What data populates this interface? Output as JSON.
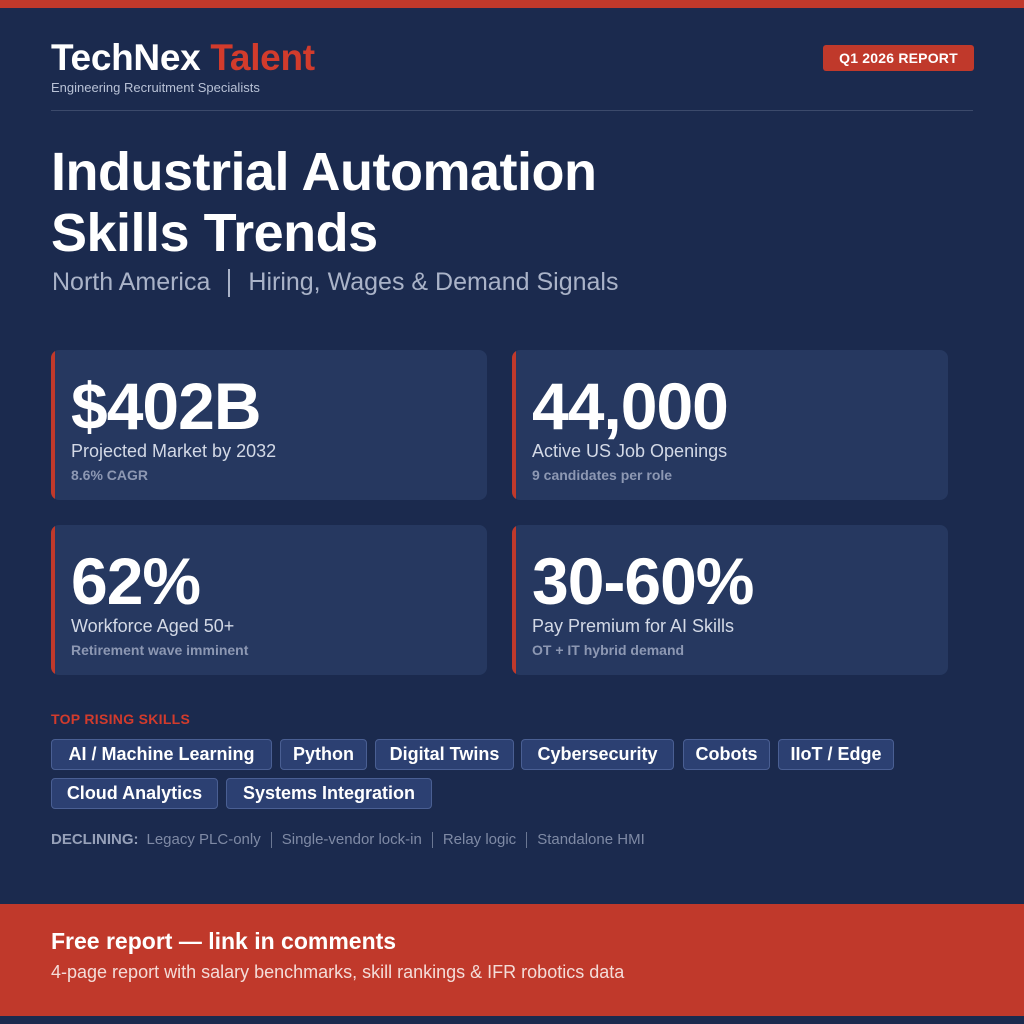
{
  "brand": {
    "name_main": "TechNex",
    "name_accent": "Talent",
    "tagline": "Engineering Recruitment Specialists"
  },
  "report_badge": "Q1 2026 REPORT",
  "title": {
    "line1": "Industrial Automation",
    "line2": "Skills Trends"
  },
  "subtitle": {
    "region": "North America",
    "topic": "Hiring, Wages & Demand Signals"
  },
  "stats": [
    {
      "value": "$402B",
      "label": "Projected Market by 2032",
      "note": "8.6% CAGR"
    },
    {
      "value": "44,000",
      "label": "Active US Job Openings",
      "note": "9 candidates per role"
    },
    {
      "value": "62%",
      "label": "Workforce Aged 50+",
      "note": "Retirement wave imminent"
    },
    {
      "value": "30-60%",
      "label": "Pay Premium for AI Skills",
      "note": "OT + IT hybrid demand"
    }
  ],
  "rising": {
    "heading": "TOP RISING SKILLS",
    "skills": [
      "AI / Machine Learning",
      "Python",
      "Digital Twins",
      "Cybersecurity",
      "Cobots",
      "IIoT / Edge",
      "Cloud Analytics",
      "Systems Integration"
    ]
  },
  "declining": {
    "label": "DECLINING:",
    "items": [
      "Legacy PLC-only",
      "Single-vendor lock-in",
      "Relay logic",
      "Standalone HMI"
    ]
  },
  "footer": {
    "title": "Free report — link in comments",
    "text": "4-page report with salary benchmarks, skill rankings & IFR robotics data"
  },
  "colors": {
    "background": "#1b2a4e",
    "card": "#263860",
    "accent": "#c0392b",
    "chip": "#2c4072"
  }
}
